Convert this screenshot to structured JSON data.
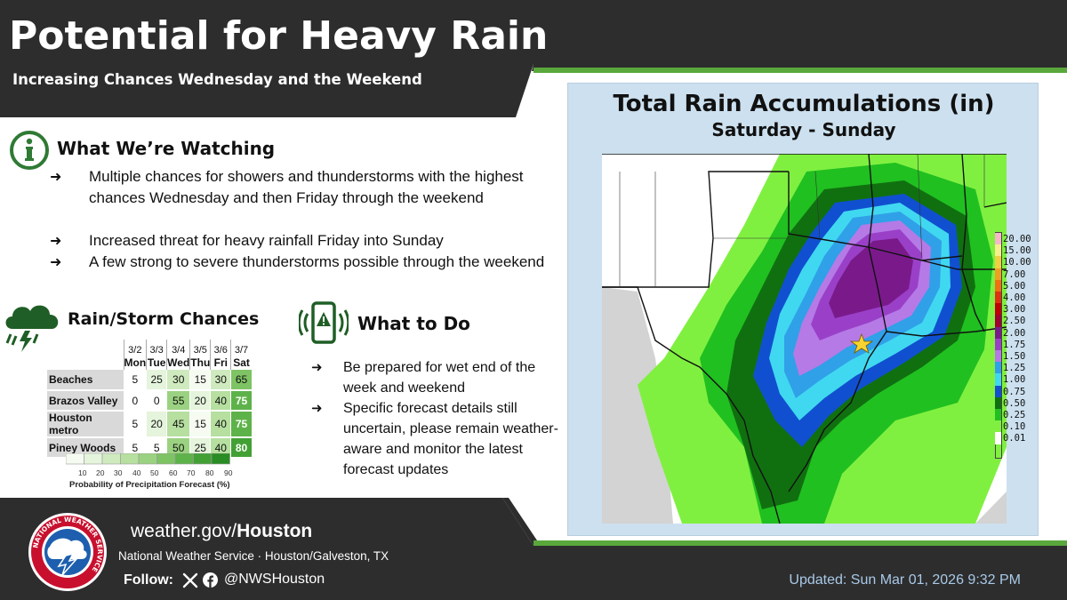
{
  "header": {
    "title": "Potential for Heavy Rain",
    "subtitle": "Increasing Chances Wednesday and the Weekend"
  },
  "watching": {
    "heading": "What We’re Watching",
    "icon": "info-icon",
    "bullets": [
      "Multiple chances for showers and thunderstorms with the highest chances Wednesday and then Friday through the weekend",
      "Increased threat for heavy rainfall Friday into Sunday",
      "A few strong to severe thunderstorms possible through the weekend"
    ]
  },
  "rain_chances": {
    "heading": "Rain/Storm Chances",
    "icon": "storm-cloud-icon",
    "dates": [
      "3/2",
      "3/3",
      "3/4",
      "3/5",
      "3/6",
      "3/7"
    ],
    "days": [
      "Mon",
      "Tue",
      "Wed",
      "Thu",
      "Fri",
      "Sat"
    ],
    "rows": [
      {
        "location": "Beaches",
        "values": [
          5,
          25,
          30,
          15,
          30,
          65
        ]
      },
      {
        "location": "Brazos Valley",
        "values": [
          0,
          0,
          55,
          20,
          40,
          75
        ]
      },
      {
        "location": "Houston metro",
        "values": [
          5,
          20,
          45,
          15,
          40,
          75
        ]
      },
      {
        "location": "Piney Woods",
        "values": [
          5,
          5,
          50,
          25,
          40,
          80
        ]
      }
    ],
    "scale_ticks": [
      "10",
      "20",
      "30",
      "40",
      "50",
      "60",
      "70",
      "80",
      "90"
    ],
    "scale_colors": [
      "#f5fbf1",
      "#e5f4dc",
      "#cfeabf",
      "#b6dfa0",
      "#9bd281",
      "#7ec364",
      "#5eb24a",
      "#43a035",
      "#2a8c24"
    ],
    "scale_title": "Probability of Precipitation Forecast (%)"
  },
  "what_to_do": {
    "heading": "What to Do",
    "icon": "phone-alert-icon",
    "bullets": [
      "Be prepared for wet end of the week and weekend",
      "Specific forecast details still uncertain, please remain weather-aware and monitor the latest forecast updates"
    ]
  },
  "map": {
    "title": "Total Rain Accumulations (in)",
    "subtitle": "Saturday - Sunday",
    "legend": [
      {
        "label": "20.00",
        "color": "#f7b7c8"
      },
      {
        "label": "15.00",
        "color": "#f5f08a"
      },
      {
        "label": "10.00",
        "color": "#f0d040"
      },
      {
        "label": "7.00",
        "color": "#f0a020"
      },
      {
        "label": "5.00",
        "color": "#f07010"
      },
      {
        "label": "4.00",
        "color": "#e03010"
      },
      {
        "label": "3.00",
        "color": "#c00000"
      },
      {
        "label": "2.50",
        "color": "#a00030"
      },
      {
        "label": "2.00",
        "color": "#7a1a8a"
      },
      {
        "label": "1.75",
        "color": "#9a40c8"
      },
      {
        "label": "1.50",
        "color": "#b57ae6"
      },
      {
        "label": "1.25",
        "color": "#30a0e8"
      },
      {
        "label": "1.00",
        "color": "#40d8f0"
      },
      {
        "label": "0.75",
        "color": "#1050d0"
      },
      {
        "label": "0.50",
        "color": "#107010"
      },
      {
        "label": "0.25",
        "color": "#20c020"
      },
      {
        "label": "0.10",
        "color": "#80f040"
      },
      {
        "label": "0.01",
        "color": "#ffffff"
      }
    ]
  },
  "footer": {
    "url_prefix": "weather.gov/",
    "url_bold": "Houston",
    "office": "National Weather Service · Houston/Galveston, TX",
    "follow_label": "Follow:",
    "handle": "@NWSHouston",
    "updated": "Updated: Sun Mar 01, 2026 9:32 PM",
    "logo_text": "NATIONAL WEATHER SERVICE"
  },
  "colors": {
    "header_bg": "#2d2d2d",
    "accent_green": "#5aa83c",
    "footer_bg": "#2d2d2d",
    "updated_text": "#a9c9e8"
  }
}
